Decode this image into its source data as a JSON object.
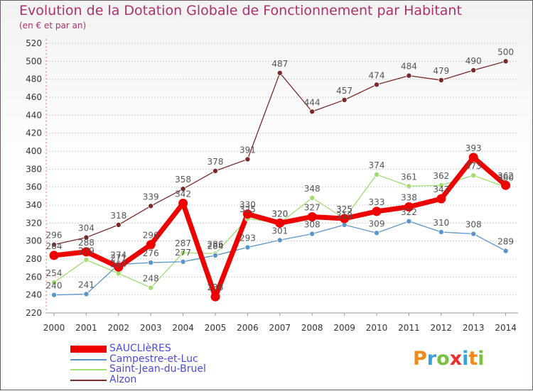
{
  "header": {
    "title": "Evolution de la Dotation Globale de Fonctionnement par Habitant",
    "subtitle": "(en € et par an)"
  },
  "logo": {
    "text": "Proxiti",
    "letters": [
      {
        "ch": "P",
        "color": "#f08a1a"
      },
      {
        "ch": "r",
        "color": "#3aa0d8"
      },
      {
        "ch": "o",
        "color": "#7ac143"
      },
      {
        "ch": "x",
        "color": "#e8322a"
      },
      {
        "ch": "i",
        "color": "#3aa0d8"
      },
      {
        "ch": "t",
        "color": "#f08a1a"
      },
      {
        "ch": "i",
        "color": "#7ac143"
      }
    ]
  },
  "chart_data": {
    "type": "line",
    "title": "Evolution de la Dotation Globale de Fonctionnement par Habitant",
    "subtitle": "(en € et par an)",
    "xlabel": "",
    "ylabel": "",
    "categories": [
      "2000",
      "2001",
      "2002",
      "2003",
      "2004",
      "2005",
      "2006",
      "2007",
      "2008",
      "2009",
      "2010",
      "2011",
      "2012",
      "2013",
      "2014"
    ],
    "ylim": [
      220,
      520
    ],
    "yticks": [
      220,
      240,
      260,
      280,
      300,
      320,
      340,
      360,
      380,
      400,
      420,
      440,
      460,
      480,
      500,
      520
    ],
    "grid": true,
    "legend_position": "bottom-left",
    "series": [
      {
        "name": "Alzon",
        "color": "#7a2a2a",
        "values": [
          296,
          304,
          318,
          339,
          358,
          378,
          391,
          487,
          444,
          457,
          474,
          484,
          479,
          490,
          500
        ]
      },
      {
        "name": "Saint-Jean-du-Bruel",
        "color": "#a0dc70",
        "values": [
          254,
          279,
          264,
          248,
          287,
          286,
          325,
          320,
          348,
          325,
          374,
          361,
          362,
          373,
          360
        ]
      },
      {
        "name": "Campestre-et-Luc",
        "color": "#5a96cc",
        "values": [
          240,
          241,
          274,
          276,
          277,
          284,
          293,
          301,
          308,
          318,
          309,
          322,
          310,
          308,
          289
        ]
      },
      {
        "name": "SAUCLIèRES",
        "color": "#ee0000",
        "values": [
          284,
          288,
          271,
          296,
          342,
          238,
          330,
          320,
          327,
          325,
          333,
          338,
          347,
          393,
          362
        ]
      }
    ],
    "legend_order": [
      "SAUCLIèRES",
      "Campestre-et-Luc",
      "Saint-Jean-du-Bruel",
      "Alzon"
    ]
  }
}
